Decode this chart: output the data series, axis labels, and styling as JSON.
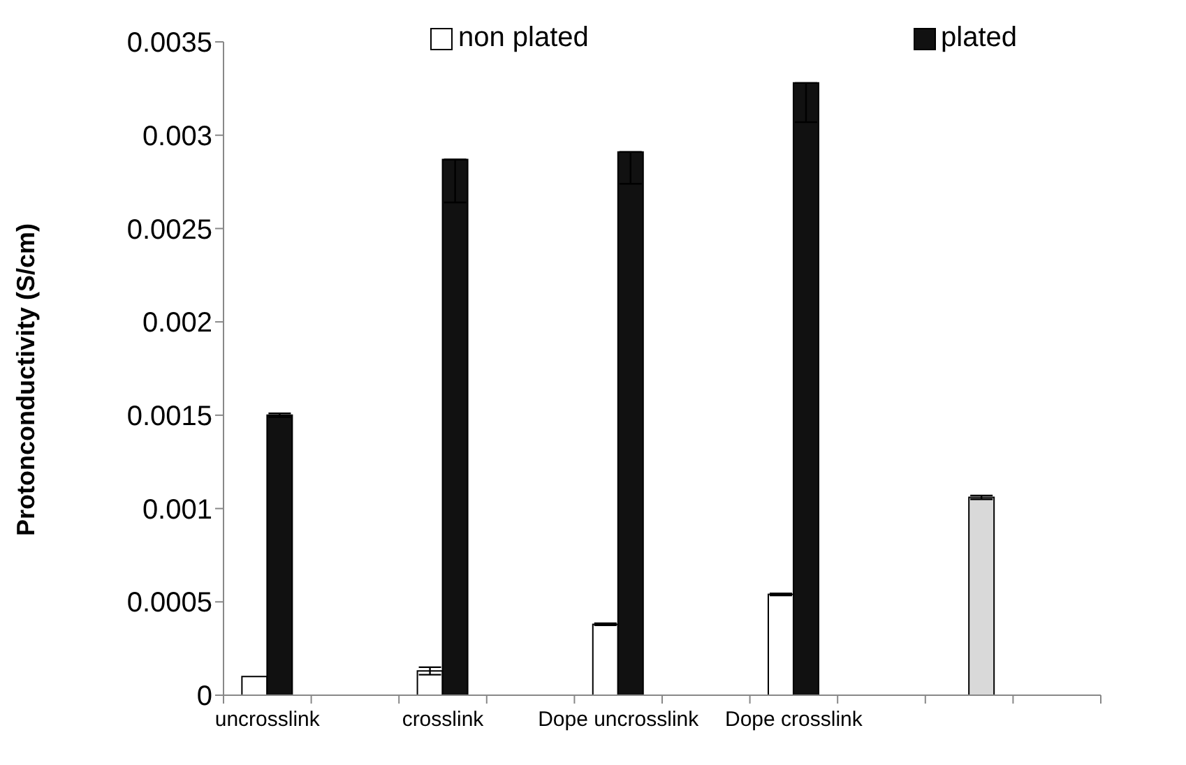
{
  "chart_data": {
    "type": "bar",
    "ylabel": "Protonconductivity (S/cm)",
    "categories": [
      "uncrosslink",
      null,
      "crosslink",
      null,
      "Dope uncrosslink",
      null,
      "Dope crosslink",
      null,
      null,
      null
    ],
    "series": [
      {
        "name": "non plated",
        "color": "#ffffff",
        "values": [
          0.0001,
          null,
          0.00013,
          null,
          0.00038,
          null,
          0.00054,
          null,
          null,
          null
        ],
        "errors": [
          null,
          null,
          2e-05,
          null,
          5e-06,
          null,
          5e-06,
          null,
          null,
          null
        ]
      },
      {
        "name": "plated",
        "color": "#111111",
        "colors": [
          "#111111",
          null,
          "#111111",
          null,
          "#111111",
          null,
          "#111111",
          null,
          "#d9d9d9",
          null
        ],
        "values": [
          0.0015,
          null,
          0.00287,
          null,
          0.00291,
          null,
          0.00328,
          null,
          0.00106,
          null
        ],
        "errors": [
          1e-05,
          null,
          [
            0.00264,
            0.00287
          ],
          null,
          [
            0.00274,
            0.00291
          ],
          null,
          [
            0.00307,
            0.00328
          ],
          null,
          1e-05,
          null
        ]
      }
    ],
    "ylim": [
      0,
      0.0035
    ],
    "yticks": [
      0,
      0.0005,
      0.001,
      0.0015,
      0.002,
      0.0025,
      0.003,
      0.0035
    ],
    "grid": false,
    "legend": "top"
  }
}
